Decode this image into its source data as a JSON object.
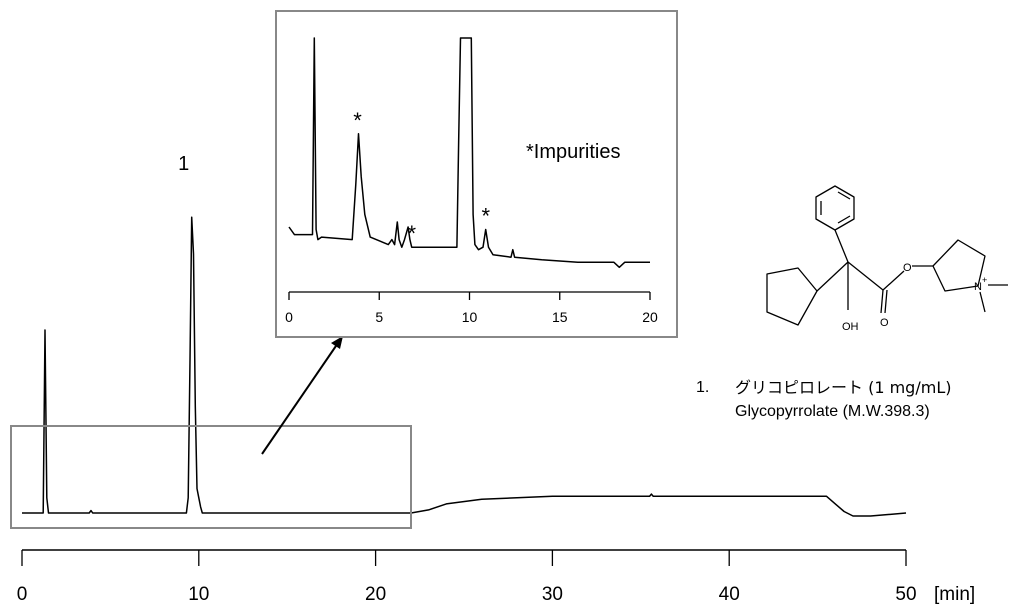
{
  "chart_data": [
    {
      "type": "line",
      "title": "",
      "xlabel": "",
      "x_unit": "[min]",
      "ylabel": "",
      "xlim": [
        0,
        50
      ],
      "x_ticks": [
        0,
        10,
        20,
        30,
        40,
        50
      ],
      "grid": false,
      "series": [
        {
          "x": [
            0,
            1.2,
            1.3,
            1.4,
            1.5,
            1.6,
            3.8,
            3.9,
            4.0,
            9.3,
            9.4,
            9.5,
            9.6,
            9.7,
            9.8,
            9.9,
            10.0,
            10.1,
            10.2,
            10.4,
            22.0,
            23.0,
            24.0,
            26.0,
            28.0,
            30.0,
            32.0,
            34.0,
            35.5,
            35.6,
            35.7,
            36.0,
            38.0,
            40.0,
            42.0,
            44.0,
            45.5,
            46.0,
            46.5,
            47.0,
            48.0,
            49.0,
            50.0
          ],
          "y": [
            0,
            0,
            0.6,
            0.05,
            0,
            0,
            0,
            0.008,
            0,
            0,
            0.05,
            0.5,
            0.97,
            0.85,
            0.35,
            0.08,
            0.05,
            0.02,
            0,
            0,
            0,
            0.01,
            0.03,
            0.045,
            0.05,
            0.055,
            0.055,
            0.055,
            0.055,
            0.062,
            0.055,
            0.055,
            0.055,
            0.055,
            0.055,
            0.055,
            0.055,
            0.03,
            0.005,
            -0.01,
            -0.01,
            -0.005,
            0
          ]
        }
      ],
      "peak_labels": [
        {
          "text": "1",
          "x": 9.6
        }
      ]
    },
    {
      "type": "line",
      "title": "",
      "xlim": [
        0,
        20
      ],
      "x_ticks": [
        0,
        5,
        10,
        15,
        20
      ],
      "annotation": "*Impurities",
      "impurity_mark": "*",
      "impurity_peaks_at": [
        3.8,
        6.8,
        10.9
      ],
      "series": [
        {
          "x": [
            0,
            0.3,
            1.3,
            1.4,
            1.5,
            1.6,
            1.8,
            3.5,
            3.7,
            3.85,
            4.0,
            4.2,
            4.5,
            5.5,
            5.7,
            5.85,
            6.0,
            6.1,
            6.25,
            6.4,
            6.6,
            6.7,
            6.8,
            9.3,
            9.4,
            9.5,
            9.6,
            9.7,
            10.0,
            10.1,
            10.2,
            10.3,
            10.5,
            10.75,
            10.9,
            11.05,
            11.3,
            12.3,
            12.4,
            12.5,
            14.0,
            16.0,
            18.0,
            18.3,
            18.6,
            19.0,
            20.0
          ],
          "y": [
            0.25,
            0.22,
            0.22,
            1.0,
            0.24,
            0.2,
            0.21,
            0.2,
            0.42,
            0.62,
            0.45,
            0.3,
            0.21,
            0.18,
            0.2,
            0.18,
            0.27,
            0.2,
            0.17,
            0.2,
            0.25,
            0.2,
            0.17,
            0.17,
            0.6,
            1.0,
            1.0,
            1.0,
            1.0,
            1.0,
            0.3,
            0.18,
            0.16,
            0.17,
            0.24,
            0.17,
            0.14,
            0.13,
            0.16,
            0.13,
            0.12,
            0.11,
            0.11,
            0.09,
            0.11,
            0.11,
            0.11
          ]
        }
      ]
    }
  ],
  "compound": {
    "number": "1.",
    "name_jp": "グリコピロレート (1 mg/mL)",
    "name_en": "Glycopyrrolate (M.W.398.3)",
    "structure_labels": {
      "oh": "OH",
      "o_carbonyl": "O",
      "o_ester": "O",
      "n_plus": "N",
      "charge": "+"
    }
  }
}
